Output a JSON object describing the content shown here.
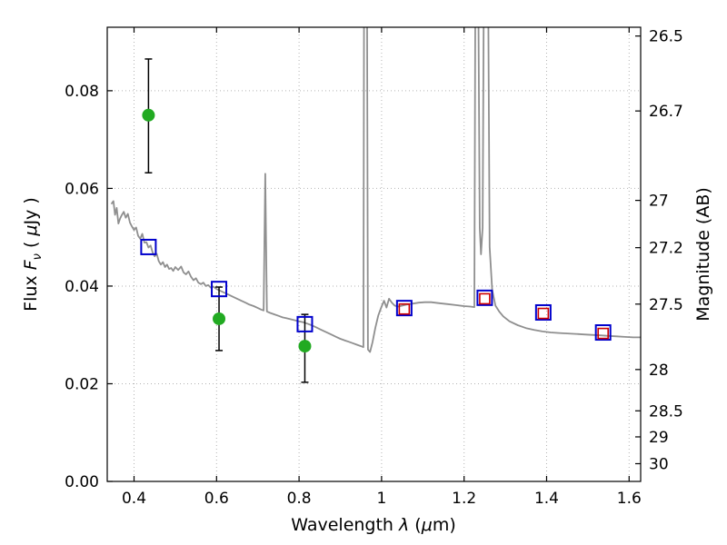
{
  "chart_data": {
    "type": "line",
    "title": "",
    "xlabel": {
      "prefix": "Wavelength  ",
      "symbol": "λ",
      "mid": " (",
      "mu": "μ",
      "suffix": "m)"
    },
    "ylabel": {
      "prefix": "Flux  ",
      "symbol": "F",
      "sub": "ν",
      "mid": "  ( ",
      "mu": "μ",
      "suffix": "Jy )"
    },
    "ylabel_right": "Magnitude (AB)",
    "xlim": [
      0.335,
      1.628
    ],
    "ylim": [
      0,
      0.093
    ],
    "x_ticks": [
      0.4,
      0.6,
      0.8,
      1,
      1.2,
      1.4,
      1.6
    ],
    "x_tick_labels": [
      "0.4",
      "0.6",
      "0.8",
      "1",
      "1.2",
      "1.4",
      "1.6"
    ],
    "y_ticks": [
      0,
      0.02,
      0.04,
      0.06,
      0.08
    ],
    "y_tick_labels": [
      "0.00",
      "0.02",
      "0.04",
      "0.06",
      "0.08"
    ],
    "right_ticks": [
      26.5,
      26.7,
      27,
      27.2,
      27.5,
      28,
      28.5,
      29,
      30
    ],
    "right_tick_labels": [
      "26.5",
      "26.7",
      "27",
      "27.2",
      "27.5",
      "28",
      "28.5",
      "29",
      "30"
    ],
    "ab_zeropoint": 23.9,
    "grid": "dotted",
    "colors": {
      "spectrum": "#8f8f8f",
      "observed": "#22aa22",
      "model_square": "#0000cc",
      "ir_square": "#cc0000",
      "errorbar": "#000000",
      "grid": "#b3b3b3",
      "frame": "#000000"
    },
    "series": [
      {
        "name": "model-spectrum",
        "type": "line",
        "points": [
          [
            0.345,
            0.0568
          ],
          [
            0.35,
            0.0574
          ],
          [
            0.354,
            0.0546
          ],
          [
            0.358,
            0.056
          ],
          [
            0.362,
            0.0528
          ],
          [
            0.366,
            0.0538
          ],
          [
            0.37,
            0.0545
          ],
          [
            0.375,
            0.0552
          ],
          [
            0.38,
            0.054
          ],
          [
            0.385,
            0.0548
          ],
          [
            0.39,
            0.053
          ],
          [
            0.395,
            0.0522
          ],
          [
            0.4,
            0.0515
          ],
          [
            0.405,
            0.052
          ],
          [
            0.41,
            0.0503
          ],
          [
            0.415,
            0.0497
          ],
          [
            0.42,
            0.0507
          ],
          [
            0.425,
            0.0489
          ],
          [
            0.43,
            0.049
          ],
          [
            0.435,
            0.0479
          ],
          [
            0.44,
            0.0483
          ],
          [
            0.445,
            0.0469
          ],
          [
            0.45,
            0.0461
          ],
          [
            0.455,
            0.0466
          ],
          [
            0.46,
            0.0451
          ],
          [
            0.465,
            0.0444
          ],
          [
            0.47,
            0.0449
          ],
          [
            0.475,
            0.0439
          ],
          [
            0.48,
            0.0444
          ],
          [
            0.485,
            0.0435
          ],
          [
            0.49,
            0.0437
          ],
          [
            0.495,
            0.0431
          ],
          [
            0.5,
            0.0439
          ],
          [
            0.507,
            0.0433
          ],
          [
            0.514,
            0.044
          ],
          [
            0.52,
            0.0428
          ],
          [
            0.526,
            0.0424
          ],
          [
            0.532,
            0.043
          ],
          [
            0.538,
            0.0419
          ],
          [
            0.544,
            0.0412
          ],
          [
            0.55,
            0.0416
          ],
          [
            0.556,
            0.0407
          ],
          [
            0.562,
            0.0404
          ],
          [
            0.568,
            0.0407
          ],
          [
            0.574,
            0.04
          ],
          [
            0.58,
            0.0402
          ],
          [
            0.586,
            0.0397
          ],
          [
            0.592,
            0.0399
          ],
          [
            0.6,
            0.0394
          ],
          [
            0.61,
            0.039
          ],
          [
            0.62,
            0.0386
          ],
          [
            0.63,
            0.0382
          ],
          [
            0.64,
            0.0378
          ],
          [
            0.65,
            0.0374
          ],
          [
            0.66,
            0.037
          ],
          [
            0.67,
            0.0366
          ],
          [
            0.68,
            0.0362
          ],
          [
            0.69,
            0.0359
          ],
          [
            0.7,
            0.0355
          ],
          [
            0.708,
            0.0352
          ],
          [
            0.714,
            0.035
          ],
          [
            0.718,
            0.063
          ],
          [
            0.722,
            0.0348
          ],
          [
            0.73,
            0.0345
          ],
          [
            0.74,
            0.0342
          ],
          [
            0.75,
            0.0339
          ],
          [
            0.76,
            0.0336
          ],
          [
            0.77,
            0.0334
          ],
          [
            0.78,
            0.0332
          ],
          [
            0.79,
            0.033
          ],
          [
            0.8,
            0.0328
          ],
          [
            0.81,
            0.0326
          ],
          [
            0.82,
            0.0323
          ],
          [
            0.83,
            0.032
          ],
          [
            0.84,
            0.0316
          ],
          [
            0.85,
            0.0312
          ],
          [
            0.86,
            0.0308
          ],
          [
            0.87,
            0.0304
          ],
          [
            0.88,
            0.03
          ],
          [
            0.89,
            0.0296
          ],
          [
            0.9,
            0.0292
          ],
          [
            0.91,
            0.0289
          ],
          [
            0.92,
            0.0286
          ],
          [
            0.93,
            0.0283
          ],
          [
            0.94,
            0.028
          ],
          [
            0.95,
            0.0277
          ],
          [
            0.956,
            0.0275
          ],
          [
            0.958,
            0.12
          ],
          [
            0.964,
            0.12
          ],
          [
            0.967,
            0.027
          ],
          [
            0.972,
            0.0265
          ],
          [
            0.978,
            0.0285
          ],
          [
            0.985,
            0.0315
          ],
          [
            0.992,
            0.034
          ],
          [
            1.0,
            0.0358
          ],
          [
            1.006,
            0.037
          ],
          [
            1.012,
            0.0356
          ],
          [
            1.018,
            0.0374
          ],
          [
            1.025,
            0.0366
          ],
          [
            1.032,
            0.036
          ],
          [
            1.04,
            0.0358
          ],
          [
            1.05,
            0.036
          ],
          [
            1.06,
            0.0362
          ],
          [
            1.075,
            0.0364
          ],
          [
            1.09,
            0.0366
          ],
          [
            1.105,
            0.0367
          ],
          [
            1.12,
            0.0367
          ],
          [
            1.14,
            0.0365
          ],
          [
            1.16,
            0.0363
          ],
          [
            1.18,
            0.0361
          ],
          [
            1.2,
            0.0359
          ],
          [
            1.215,
            0.0358
          ],
          [
            1.225,
            0.0357
          ],
          [
            1.228,
            0.12
          ],
          [
            1.233,
            0.12
          ],
          [
            1.238,
            0.052
          ],
          [
            1.241,
            0.0465
          ],
          [
            1.245,
            0.052
          ],
          [
            1.249,
            0.12
          ],
          [
            1.257,
            0.12
          ],
          [
            1.262,
            0.048
          ],
          [
            1.268,
            0.0392
          ],
          [
            1.276,
            0.036
          ],
          [
            1.285,
            0.0348
          ],
          [
            1.295,
            0.0338
          ],
          [
            1.31,
            0.0328
          ],
          [
            1.33,
            0.032
          ],
          [
            1.35,
            0.0314
          ],
          [
            1.37,
            0.031
          ],
          [
            1.39,
            0.0307
          ],
          [
            1.41,
            0.0305
          ],
          [
            1.43,
            0.0304
          ],
          [
            1.45,
            0.0303
          ],
          [
            1.47,
            0.0302
          ],
          [
            1.49,
            0.0301
          ],
          [
            1.51,
            0.03
          ],
          [
            1.53,
            0.0299
          ],
          [
            1.55,
            0.0298
          ],
          [
            1.57,
            0.0297
          ],
          [
            1.59,
            0.0296
          ],
          [
            1.61,
            0.0295
          ],
          [
            1.628,
            0.0295
          ]
        ]
      },
      {
        "name": "observed-photometry",
        "type": "scatter-circle",
        "points": [
          {
            "x": 0.435,
            "y": 0.075,
            "err_lo": 0.0118,
            "err_hi": 0.0115
          },
          {
            "x": 0.606,
            "y": 0.0333,
            "err_lo": 0.0065,
            "err_hi": 0.0065
          },
          {
            "x": 0.814,
            "y": 0.0277,
            "err_lo": 0.0074,
            "err_hi": 0.0065
          }
        ]
      },
      {
        "name": "model-photometry",
        "type": "scatter-square",
        "points": [
          [
            0.435,
            0.048
          ],
          [
            0.606,
            0.0394
          ],
          [
            0.814,
            0.0322
          ],
          [
            1.055,
            0.0355
          ],
          [
            1.25,
            0.0376
          ],
          [
            1.392,
            0.0346
          ],
          [
            1.537,
            0.0305
          ]
        ]
      },
      {
        "name": "ir-photometry",
        "type": "scatter-square-small",
        "points": [
          [
            1.055,
            0.0353
          ],
          [
            1.25,
            0.0374
          ],
          [
            1.392,
            0.0344
          ],
          [
            1.537,
            0.0303
          ]
        ]
      }
    ]
  }
}
